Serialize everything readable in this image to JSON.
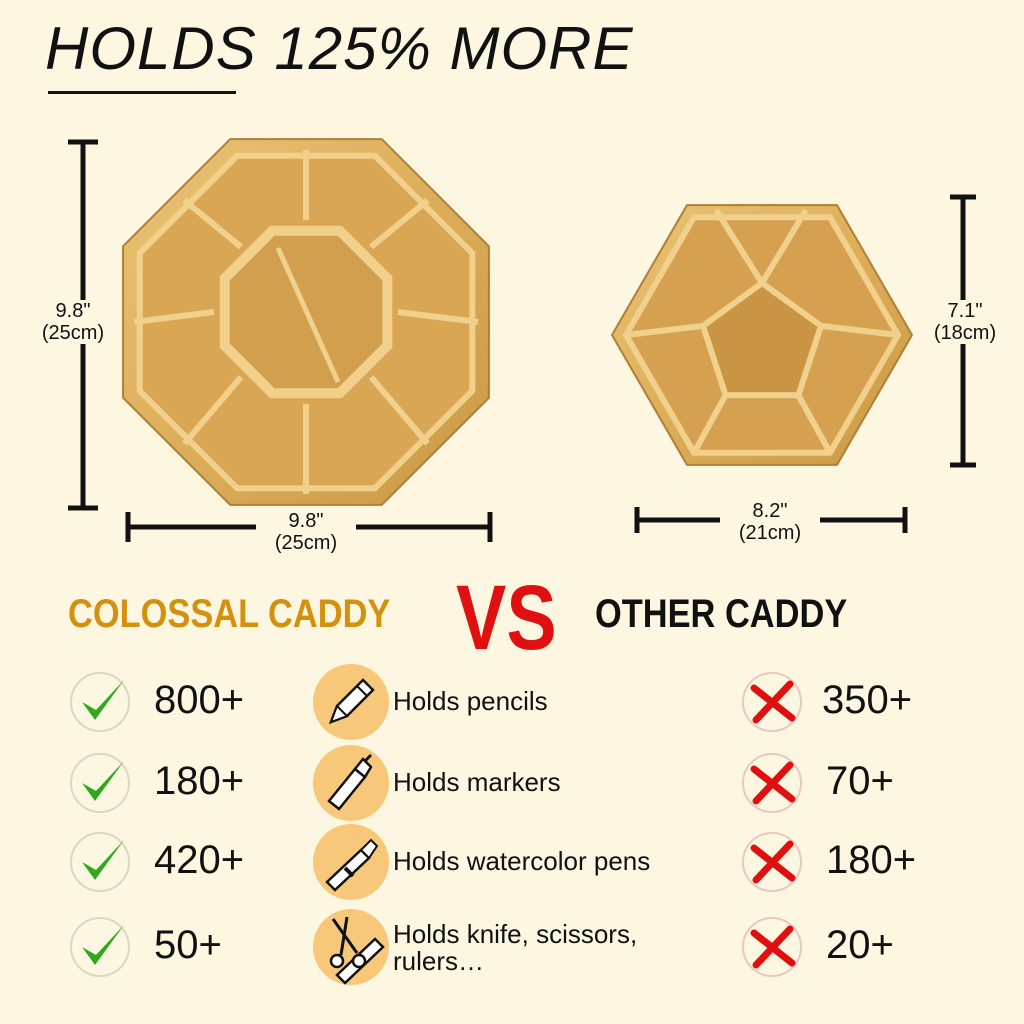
{
  "title": "HOLDS 125% MORE",
  "colossal": {
    "height_label": "9.8\"",
    "height_label_cm": "(25cm)",
    "width_label": "9.8\"",
    "width_label_cm": "(25cm)"
  },
  "other": {
    "height_label": "7.1\"",
    "height_label_cm": "(18cm)",
    "width_label": "8.2\"",
    "width_label_cm": "(21cm)"
  },
  "comparison": {
    "left_heading": "COLOSSAL CADDY",
    "vs": "VS",
    "right_heading": "OTHER CADDY",
    "rows": [
      {
        "left_value": "800+",
        "feature": "Holds pencils",
        "feature_line2": "",
        "icon": "pencil-icon",
        "right_value": "350+"
      },
      {
        "left_value": "180+",
        "feature": "Holds markers",
        "feature_line2": "",
        "icon": "marker-icon",
        "right_value": "70+"
      },
      {
        "left_value": "420+",
        "feature": "Holds watercolor pens",
        "feature_line2": "",
        "icon": "pen-icon",
        "right_value": "180+"
      },
      {
        "left_value": "50+",
        "feature": "Holds knife, scissors,",
        "feature_line2": "rulers…",
        "icon": "scissors-ruler-icon",
        "right_value": "20+"
      }
    ]
  },
  "colors": {
    "background": "#fdf6e1",
    "colossal_heading": "#d4900f",
    "vs": "#e01010",
    "check": "#2fa81f",
    "cross": "#e01010",
    "icon_circle": "#f7c87a",
    "wood": "#e2b864"
  }
}
